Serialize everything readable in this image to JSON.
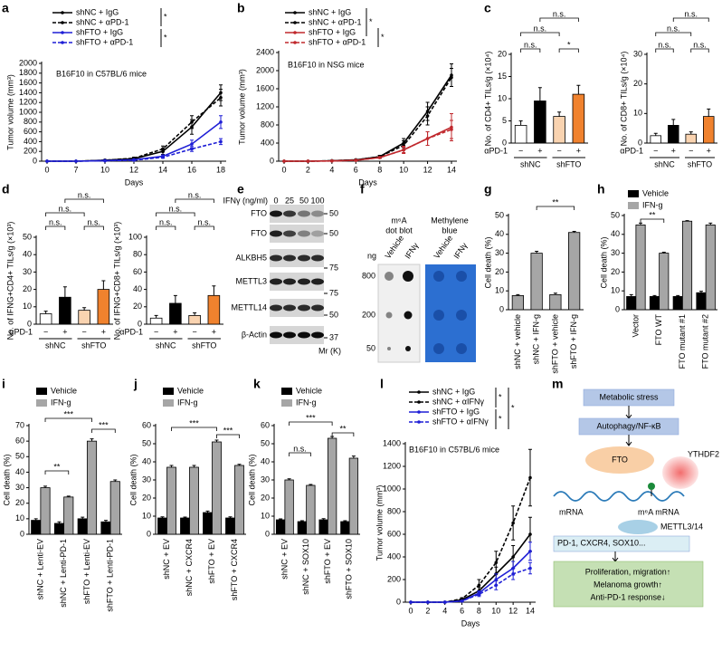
{
  "chart_data": [
    {
      "type": "line",
      "panel": "a",
      "annotation": "B16F10 in C57BL/6 mice",
      "annotation_color": "#1f1fd6",
      "x_label": "Days",
      "y_label": "Tumor volume (mm³)",
      "categories": [
        0,
        7,
        10,
        12,
        14,
        16,
        18
      ],
      "ylim": [
        0,
        2000
      ],
      "yticks": [
        0,
        200,
        400,
        600,
        800,
        1000,
        1200,
        1400,
        1600,
        1800,
        2000
      ],
      "series": [
        {
          "name": "shNC + IgG",
          "color": "#000000",
          "dash": false,
          "values": [
            0,
            0,
            20,
            50,
            200,
            700,
            1400
          ],
          "errors": [
            0,
            0,
            10,
            20,
            60,
            150,
            160
          ]
        },
        {
          "name": "shNC + αPD-1",
          "color": "#000000",
          "dash": true,
          "values": [
            0,
            0,
            20,
            60,
            250,
            800,
            1300
          ],
          "errors": [
            0,
            0,
            10,
            20,
            60,
            130,
            170
          ]
        },
        {
          "name": "shFTO + IgG",
          "color": "#1f1fd6",
          "dash": false,
          "values": [
            0,
            0,
            10,
            30,
            100,
            350,
            800
          ],
          "errors": [
            0,
            0,
            5,
            10,
            30,
            80,
            130
          ]
        },
        {
          "name": "shFTO + αPD-1",
          "color": "#1f1fd6",
          "dash": true,
          "values": [
            0,
            0,
            10,
            20,
            80,
            250,
            400
          ],
          "errors": [
            0,
            0,
            5,
            10,
            20,
            50,
            60
          ]
        }
      ],
      "annotations": [
        "*",
        "*"
      ]
    },
    {
      "type": "line",
      "panel": "b",
      "annotation": "B16F10 in NSG mice",
      "annotation_color": "#c0282d",
      "x_label": "Days",
      "y_label": "Tumor volume (mm³)",
      "categories": [
        0,
        2,
        4,
        6,
        8,
        10,
        12,
        14
      ],
      "ylim": [
        0,
        2400
      ],
      "yticks": [
        0,
        400,
        800,
        1200,
        1600,
        2000,
        2400
      ],
      "series": [
        {
          "name": "shNC + IgG",
          "color": "#000000",
          "dash": false,
          "values": [
            0,
            0,
            10,
            30,
            100,
            400,
            1100,
            1900
          ],
          "errors": [
            0,
            0,
            5,
            10,
            30,
            100,
            200,
            250
          ]
        },
        {
          "name": "shNC + αPD-1",
          "color": "#000000",
          "dash": true,
          "values": [
            0,
            0,
            10,
            30,
            100,
            350,
            1000,
            1850
          ],
          "errors": [
            0,
            0,
            5,
            10,
            30,
            100,
            200,
            200
          ]
        },
        {
          "name": "shFTO + IgG",
          "color": "#c0282d",
          "dash": false,
          "values": [
            0,
            0,
            5,
            20,
            80,
            250,
            500,
            750
          ],
          "errors": [
            0,
            0,
            5,
            10,
            20,
            80,
            150,
            300
          ]
        },
        {
          "name": "shFTO + αPD-1",
          "color": "#c0282d",
          "dash": true,
          "values": [
            0,
            0,
            5,
            20,
            80,
            250,
            500,
            700
          ],
          "errors": [
            0,
            0,
            5,
            10,
            20,
            60,
            150,
            200
          ]
        }
      ],
      "annotations": [
        "*",
        "*"
      ]
    },
    {
      "type": "bar",
      "panel": "c",
      "y_label": "No. of CD4+ TILs/g (×10⁴)",
      "categories": [
        "−",
        "+",
        "−",
        "+"
      ],
      "groups": [
        "shNC",
        "shFTO"
      ],
      "row_label": "αPD-1",
      "colors": [
        "#ffffff",
        "#000000",
        "#f9d3b0",
        "#f0822e"
      ],
      "values": [
        4,
        9.5,
        6,
        11
      ],
      "errors": [
        1,
        3,
        1,
        2
      ],
      "ylim": [
        0,
        20
      ],
      "yticks": [
        0,
        5,
        10,
        15,
        20
      ],
      "annotations": [
        "n.s.",
        "n.s.",
        "n.s.",
        "*"
      ]
    },
    {
      "type": "bar",
      "y_label": "No. of CD8+ TILs/g (×10⁴)",
      "categories": [
        "−",
        "+",
        "−",
        "+"
      ],
      "groups": [
        "shNC",
        "shFTO"
      ],
      "row_label": "αPD-1",
      "colors": [
        "#ffffff",
        "#000000",
        "#f9d3b0",
        "#f0822e"
      ],
      "values": [
        2.5,
        6,
        3,
        9
      ],
      "errors": [
        0.8,
        2,
        0.8,
        2.5
      ],
      "ylim": [
        0,
        30
      ],
      "yticks": [
        0,
        10,
        20,
        30
      ],
      "annotations": [
        "n.s.",
        "n.s.",
        "n.s.",
        "n.s."
      ]
    },
    {
      "type": "bar",
      "panel": "d",
      "y_label": "No. of IFNG+CD4+ TILs/g (×10³)",
      "categories": [
        "−",
        "+",
        "−",
        "+"
      ],
      "groups": [
        "shNC",
        "shFTO"
      ],
      "row_label": "αPD-1",
      "colors": [
        "#ffffff",
        "#000000",
        "#f9d3b0",
        "#f0822e"
      ],
      "values": [
        6,
        15.5,
        8,
        20
      ],
      "errors": [
        1.5,
        6,
        1.5,
        5
      ],
      "ylim": [
        0,
        50
      ],
      "yticks": [
        0,
        10,
        20,
        30,
        40,
        50
      ],
      "annotations": [
        "n.s.",
        "n.s.",
        "n.s.",
        "n.s."
      ]
    },
    {
      "type": "bar",
      "y_label": "No. of IFNG+CD8+ TILs/g (×10³)",
      "categories": [
        "−",
        "+",
        "−",
        "+"
      ],
      "groups": [
        "shNC",
        "shFTO"
      ],
      "row_label": "αPD-1",
      "colors": [
        "#ffffff",
        "#000000",
        "#f9d3b0",
        "#f0822e"
      ],
      "values": [
        7,
        24,
        10,
        33
      ],
      "errors": [
        3,
        9,
        3,
        11
      ],
      "ylim": [
        0,
        100
      ],
      "yticks": [
        0,
        20,
        40,
        60,
        80,
        100
      ],
      "annotations": [
        "n.s.",
        "n.s.",
        "n.s.",
        "n.s."
      ]
    },
    {
      "type": "bar",
      "panel": "g",
      "y_label": "Cell death (%)",
      "categories": [
        "shNC + vehicle",
        "shNC + IFN-g",
        "shFTO + vehicle",
        "shFTO + IFN-g"
      ],
      "color": "#a6a6a6",
      "values": [
        7.5,
        30,
        8,
        41
      ],
      "errors": [
        0.5,
        1,
        0.8,
        0.6
      ],
      "ylim": [
        0,
        50
      ],
      "yticks": [
        0,
        10,
        20,
        30,
        40,
        50
      ],
      "annotations": [
        "**"
      ]
    },
    {
      "type": "bar",
      "panel": "h",
      "y_label": "Cell death (%)",
      "categories": [
        "Vector",
        "FTO WT",
        "FTO mutant #1",
        "FTO mutant #2"
      ],
      "series": [
        {
          "name": "Vehicle",
          "color": "#000000",
          "values": [
            7,
            7,
            7,
            9
          ],
          "errors": [
            1,
            0.5,
            0.5,
            0.8
          ]
        },
        {
          "name": "IFN-g",
          "color": "#a6a6a6",
          "values": [
            45,
            30,
            47,
            45
          ],
          "errors": [
            1,
            0.5,
            0.3,
            1
          ]
        }
      ],
      "ylim": [
        0,
        50
      ],
      "yticks": [
        0,
        10,
        20,
        30,
        40,
        50
      ],
      "annotations": [
        "**"
      ]
    },
    {
      "type": "bar",
      "panel": "i",
      "y_label": "Cell death (%)",
      "categories": [
        "shNC + Lenti-EV",
        "shNC + Lenti-PD-1",
        "shFTO + Lenti-EV",
        "shFTO + Lenti-PD-1"
      ],
      "series": [
        {
          "name": "Vehicle",
          "color": "#000000",
          "values": [
            9,
            7,
            10,
            8
          ],
          "errors": [
            1,
            1,
            1,
            1
          ]
        },
        {
          "name": "IFN-g",
          "color": "#a6a6a6",
          "values": [
            30,
            24,
            60,
            34
          ],
          "errors": [
            1,
            0.6,
            1.5,
            1
          ]
        }
      ],
      "ylim": [
        0,
        70
      ],
      "yticks": [
        0,
        10,
        20,
        30,
        40,
        50,
        60,
        70
      ],
      "annotations": [
        "**",
        "***",
        "***"
      ]
    },
    {
      "type": "bar",
      "panel": "j",
      "y_label": "Cell death (%)",
      "categories": [
        "shNC + EV",
        "shNC + CXCR4",
        "shFTO + EV",
        "shFTO + CXCR4"
      ],
      "series": [
        {
          "name": "Vehicle",
          "color": "#000000",
          "values": [
            9,
            9,
            12,
            9
          ],
          "errors": [
            0.6,
            0.5,
            0.8,
            0.6
          ]
        },
        {
          "name": "IFN-g",
          "color": "#a6a6a6",
          "values": [
            37,
            37,
            51,
            38
          ],
          "errors": [
            1,
            1,
            1,
            0.6
          ]
        }
      ],
      "ylim": [
        0,
        60
      ],
      "yticks": [
        0,
        10,
        20,
        30,
        40,
        50,
        60
      ],
      "annotations": [
        "***",
        "***"
      ]
    },
    {
      "type": "bar",
      "panel": "k",
      "y_label": "Cell death (%)",
      "categories": [
        "shNC + EV",
        "shNC + SOX10",
        "shFTO + EV",
        "shFTO + SOX10"
      ],
      "series": [
        {
          "name": "Vehicle",
          "color": "#000000",
          "values": [
            8,
            7,
            8,
            7
          ],
          "errors": [
            0.5,
            0.5,
            0.6,
            0.5
          ]
        },
        {
          "name": "IFN-g",
          "color": "#a6a6a6",
          "values": [
            30,
            27,
            53,
            42
          ],
          "errors": [
            0.6,
            0.5,
            1,
            1.2
          ]
        }
      ],
      "ylim": [
        0,
        60
      ],
      "yticks": [
        0,
        10,
        20,
        30,
        40,
        50,
        60
      ],
      "annotations": [
        "n.s.",
        "***",
        "**"
      ]
    },
    {
      "type": "line",
      "panel": "l",
      "annotation": "B16F10 in C57BL/6 mice",
      "annotation_color": "#1f1fd6",
      "x_label": "Days",
      "y_label": "Tumor volume (mm³)",
      "categories": [
        0,
        2,
        4,
        6,
        8,
        10,
        12,
        14
      ],
      "ylim": [
        0,
        1400
      ],
      "yticks": [
        0,
        200,
        400,
        600,
        800,
        1000,
        1200,
        1400
      ],
      "series": [
        {
          "name": "shNC + IgG",
          "color": "#000000",
          "dash": false,
          "values": [
            0,
            0,
            0,
            20,
            100,
            250,
            400,
            600
          ],
          "errors": [
            0,
            0,
            0,
            10,
            30,
            60,
            100,
            150
          ]
        },
        {
          "name": "shNC + αIFNγ",
          "color": "#000000",
          "dash": true,
          "values": [
            0,
            0,
            0,
            30,
            150,
            350,
            700,
            1100
          ],
          "errors": [
            0,
            0,
            0,
            10,
            50,
            100,
            150,
            250
          ]
        },
        {
          "name": "shFTO + IgG",
          "color": "#1f1fd6",
          "dash": false,
          "values": [
            0,
            0,
            0,
            10,
            80,
            200,
            300,
            450
          ],
          "errors": [
            0,
            0,
            0,
            5,
            20,
            50,
            60,
            80
          ]
        },
        {
          "name": "shFTO + αIFNγ",
          "color": "#1f1fd6",
          "dash": true,
          "values": [
            0,
            0,
            0,
            10,
            70,
            150,
            250,
            300
          ],
          "errors": [
            0,
            0,
            0,
            5,
            20,
            40,
            50,
            50
          ]
        }
      ],
      "annotations": [
        "*",
        "*",
        "*"
      ]
    }
  ],
  "blot_e": {
    "panel": "e",
    "treatment_label": "IFNγ (ng/ml)",
    "doses": [
      "0",
      "25",
      "50",
      "100"
    ],
    "rows": [
      "FTO",
      "FTO",
      "ALKBH5",
      "METTL3",
      "METTL14",
      "β-Actin"
    ],
    "markers": [
      "50",
      "50",
      "75",
      "75",
      "50",
      "37"
    ],
    "marker_unit": "Mr (K)"
  },
  "dot_blot_f": {
    "panel": "f",
    "left_title": [
      "m⁶A",
      "dot blot"
    ],
    "right_title": [
      "Methylene",
      "blue"
    ],
    "amount_label": "ng",
    "conditions": [
      "Vehicle",
      "IFNγ",
      "Vehicle",
      "IFNγ"
    ],
    "amounts": [
      "800",
      "200",
      "50"
    ]
  },
  "diagram_m": {
    "panel": "m",
    "nodes": [
      "Metabolic stress",
      "Autophagy/NF-κB",
      "FTO",
      "YTHDF2",
      "mRNA",
      "m⁶A mRNA",
      "METTL3/14",
      "PD-1, CXCR4, SOX10...",
      "Proliferation, migration↑",
      "Melanoma growth↑",
      "Anti-PD-1 response↓"
    ]
  }
}
